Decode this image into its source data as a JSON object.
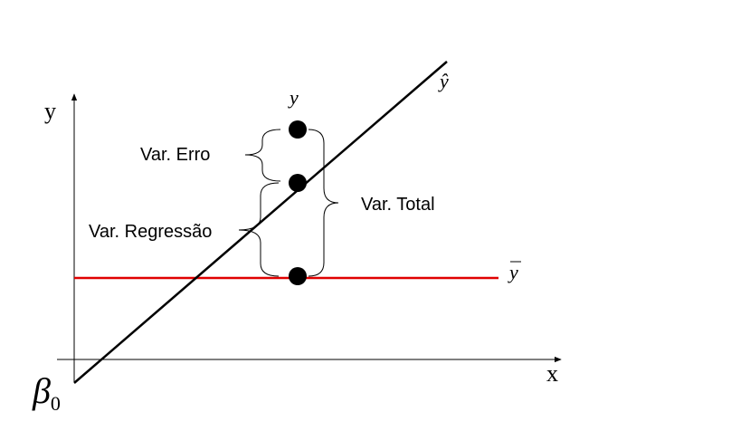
{
  "axes": {
    "x_label": "x",
    "y_label": "y"
  },
  "lines": {
    "fitted_label": "ŷ",
    "mean_label": "y",
    "fitted_color": "#000000",
    "mean_color": "#e00000"
  },
  "points": {
    "observed_label": "y"
  },
  "annotations": {
    "error": "Var. Erro",
    "regression": "Var. Regressão",
    "total": "Var. Total"
  },
  "intercept": {
    "symbol": "β",
    "subscript": "0"
  }
}
